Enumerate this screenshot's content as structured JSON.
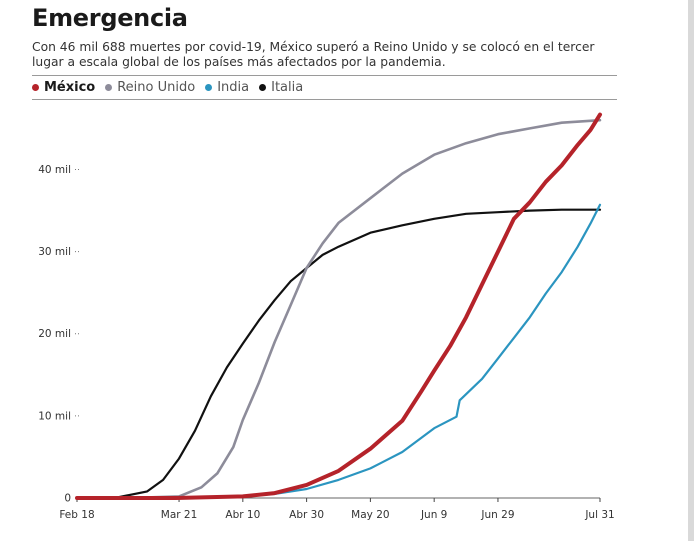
{
  "title": "Emergencia",
  "subtitle": "Con 46 mil 688 muertes por covid-19, México superó a Reino Unido y se colocó en el tercer lugar a escala global de los países más afectados por la pandemia.",
  "chart_data": {
    "type": "line",
    "title": "Emergencia",
    "xlabel": "",
    "ylabel": "",
    "x_tick_labels": [
      "Feb 18",
      "Mar 21",
      "Abr 10",
      "Abr 30",
      "May 20",
      "Jun 9",
      "Jun 29",
      "Jul 31"
    ],
    "x_tick_dates": [
      "2020-02-18",
      "2020-03-21",
      "2020-04-10",
      "2020-04-30",
      "2020-05-20",
      "2020-06-09",
      "2020-06-29",
      "2020-07-31"
    ],
    "xlim": [
      "2020-02-18",
      "2020-07-31"
    ],
    "y_ticks": [
      0,
      10000,
      20000,
      30000,
      40000
    ],
    "y_tick_labels": [
      "0",
      "10 mil",
      "20 mil",
      "30 mil",
      "40 mil"
    ],
    "ylim": [
      0,
      47000
    ],
    "grid": false,
    "legend": "top-left",
    "series": [
      {
        "name": "México",
        "color": "#b5232a",
        "points": [
          [
            "2020-03-20",
            0
          ],
          [
            "2020-04-10",
            200
          ],
          [
            "2020-04-20",
            600
          ],
          [
            "2020-04-30",
            1600
          ],
          [
            "2020-05-10",
            3300
          ],
          [
            "2020-05-20",
            6000
          ],
          [
            "2020-05-30",
            9400
          ],
          [
            "2020-06-05",
            13000
          ],
          [
            "2020-06-09",
            15500
          ],
          [
            "2020-06-14",
            18500
          ],
          [
            "2020-06-19",
            22000
          ],
          [
            "2020-06-24",
            26000
          ],
          [
            "2020-06-29",
            30000
          ],
          [
            "2020-07-04",
            34000
          ],
          [
            "2020-07-09",
            36000
          ],
          [
            "2020-07-14",
            38500
          ],
          [
            "2020-07-19",
            40500
          ],
          [
            "2020-07-24",
            43000
          ],
          [
            "2020-07-28",
            44800
          ],
          [
            "2020-07-31",
            46688
          ]
        ]
      },
      {
        "name": "Reino Unido",
        "color": "#8d8c9a",
        "points": [
          [
            "2020-03-05",
            0
          ],
          [
            "2020-03-21",
            200
          ],
          [
            "2020-03-28",
            1300
          ],
          [
            "2020-04-02",
            3000
          ],
          [
            "2020-04-07",
            6200
          ],
          [
            "2020-04-10",
            9500
          ],
          [
            "2020-04-15",
            14000
          ],
          [
            "2020-04-20",
            19000
          ],
          [
            "2020-04-25",
            23500
          ],
          [
            "2020-04-30",
            28000
          ],
          [
            "2020-05-05",
            31000
          ],
          [
            "2020-05-10",
            33500
          ],
          [
            "2020-05-20",
            36500
          ],
          [
            "2020-05-30",
            39500
          ],
          [
            "2020-06-09",
            41800
          ],
          [
            "2020-06-19",
            43200
          ],
          [
            "2020-06-29",
            44300
          ],
          [
            "2020-07-09",
            45000
          ],
          [
            "2020-07-19",
            45700
          ],
          [
            "2020-07-31",
            46000
          ]
        ]
      },
      {
        "name": "India",
        "color": "#2b95c0",
        "points": [
          [
            "2020-03-15",
            0
          ],
          [
            "2020-04-10",
            200
          ],
          [
            "2020-04-20",
            500
          ],
          [
            "2020-04-30",
            1100
          ],
          [
            "2020-05-10",
            2200
          ],
          [
            "2020-05-20",
            3600
          ],
          [
            "2020-05-30",
            5600
          ],
          [
            "2020-06-09",
            8500
          ],
          [
            "2020-06-16",
            9900
          ],
          [
            "2020-06-17",
            11900
          ],
          [
            "2020-06-24",
            14500
          ],
          [
            "2020-06-29",
            17000
          ],
          [
            "2020-07-04",
            19500
          ],
          [
            "2020-07-09",
            22000
          ],
          [
            "2020-07-14",
            24900
          ],
          [
            "2020-07-19",
            27500
          ],
          [
            "2020-07-24",
            30600
          ],
          [
            "2020-07-28",
            33400
          ],
          [
            "2020-07-31",
            35700
          ]
        ]
      },
      {
        "name": "Italia",
        "color": "#111111",
        "points": [
          [
            "2020-02-18",
            0
          ],
          [
            "2020-03-01",
            30
          ],
          [
            "2020-03-11",
            800
          ],
          [
            "2020-03-16",
            2200
          ],
          [
            "2020-03-21",
            4800
          ],
          [
            "2020-03-26",
            8200
          ],
          [
            "2020-03-31",
            12400
          ],
          [
            "2020-04-05",
            15900
          ],
          [
            "2020-04-10",
            18800
          ],
          [
            "2020-04-15",
            21600
          ],
          [
            "2020-04-20",
            24100
          ],
          [
            "2020-04-25",
            26400
          ],
          [
            "2020-04-30",
            28000
          ],
          [
            "2020-05-05",
            29600
          ],
          [
            "2020-05-10",
            30600
          ],
          [
            "2020-05-20",
            32300
          ],
          [
            "2020-05-30",
            33200
          ],
          [
            "2020-06-09",
            34000
          ],
          [
            "2020-06-19",
            34600
          ],
          [
            "2020-06-29",
            34800
          ],
          [
            "2020-07-09",
            35000
          ],
          [
            "2020-07-19",
            35100
          ],
          [
            "2020-07-31",
            35100
          ]
        ]
      }
    ]
  }
}
